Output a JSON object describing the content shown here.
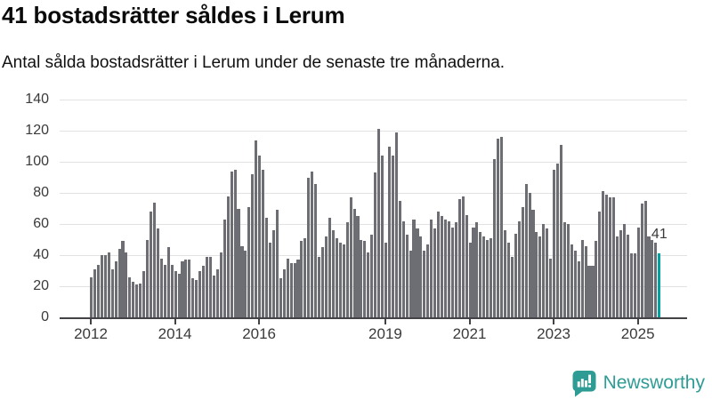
{
  "header": {
    "title": "41 bostadsrätter såldes i Lerum",
    "subtitle": "Antal sålda bostadsrätter i Lerum under de senaste tre månaderna."
  },
  "chart_data": {
    "type": "bar",
    "title": "41 bostadsrätter såldes i Lerum",
    "subtitle": "Antal sålda bostadsrätter i Lerum under de senaste tre månaderna.",
    "xlabel": "",
    "ylabel": "",
    "grid": true,
    "ylim": [
      0,
      140
    ],
    "y_ticks": [
      0,
      20,
      40,
      60,
      80,
      100,
      120,
      140
    ],
    "x_ticks": [
      {
        "label": "2012",
        "month_index": 0
      },
      {
        "label": "2014",
        "month_index": 24
      },
      {
        "label": "2016",
        "month_index": 48
      },
      {
        "label": "2019",
        "month_index": 84
      },
      {
        "label": "2021",
        "month_index": 108
      },
      {
        "label": "2023",
        "month_index": 132
      },
      {
        "label": "2025",
        "month_index": 156
      }
    ],
    "series_start": "2012",
    "values": [
      26,
      31,
      34,
      40,
      40,
      42,
      31,
      36,
      44,
      49,
      42,
      26,
      23,
      21,
      22,
      30,
      50,
      68,
      74,
      57,
      38,
      34,
      45,
      34,
      30,
      28,
      36,
      37,
      37,
      25,
      24,
      30,
      33,
      39,
      39,
      27,
      31,
      42,
      63,
      78,
      94,
      95,
      70,
      46,
      43,
      71,
      92,
      114,
      104,
      95,
      64,
      48,
      56,
      69,
      25,
      31,
      38,
      35,
      35,
      37,
      49,
      51,
      90,
      94,
      86,
      39,
      45,
      52,
      64,
      56,
      51,
      48,
      47,
      61,
      77,
      70,
      65,
      50,
      49,
      42,
      53,
      93,
      121,
      104,
      48,
      110,
      104,
      119,
      75,
      62,
      53,
      43,
      63,
      57,
      52,
      43,
      47,
      63,
      57,
      68,
      65,
      63,
      62,
      58,
      61,
      76,
      78,
      66,
      48,
      58,
      61,
      55,
      52,
      50,
      51,
      102,
      115,
      116,
      56,
      48,
      39,
      54,
      62,
      71,
      86,
      80,
      69,
      55,
      52,
      60,
      57,
      38,
      95,
      99,
      111,
      61,
      60,
      47,
      43,
      36,
      50,
      46,
      33,
      33,
      49,
      68,
      81,
      79,
      77,
      77,
      52,
      56,
      60,
      53,
      41,
      41,
      58,
      73,
      75,
      52,
      50,
      48,
      41
    ],
    "bar_color": "#6d6d74",
    "highlight": {
      "index": 162,
      "value": 41,
      "label": "41",
      "color": "#00a3a2"
    }
  },
  "footer": {
    "brand": "Newsworthy",
    "brand_color": "#2e9c94",
    "logo_icon": "newsworthy-speech-bubble-bar-chart"
  }
}
